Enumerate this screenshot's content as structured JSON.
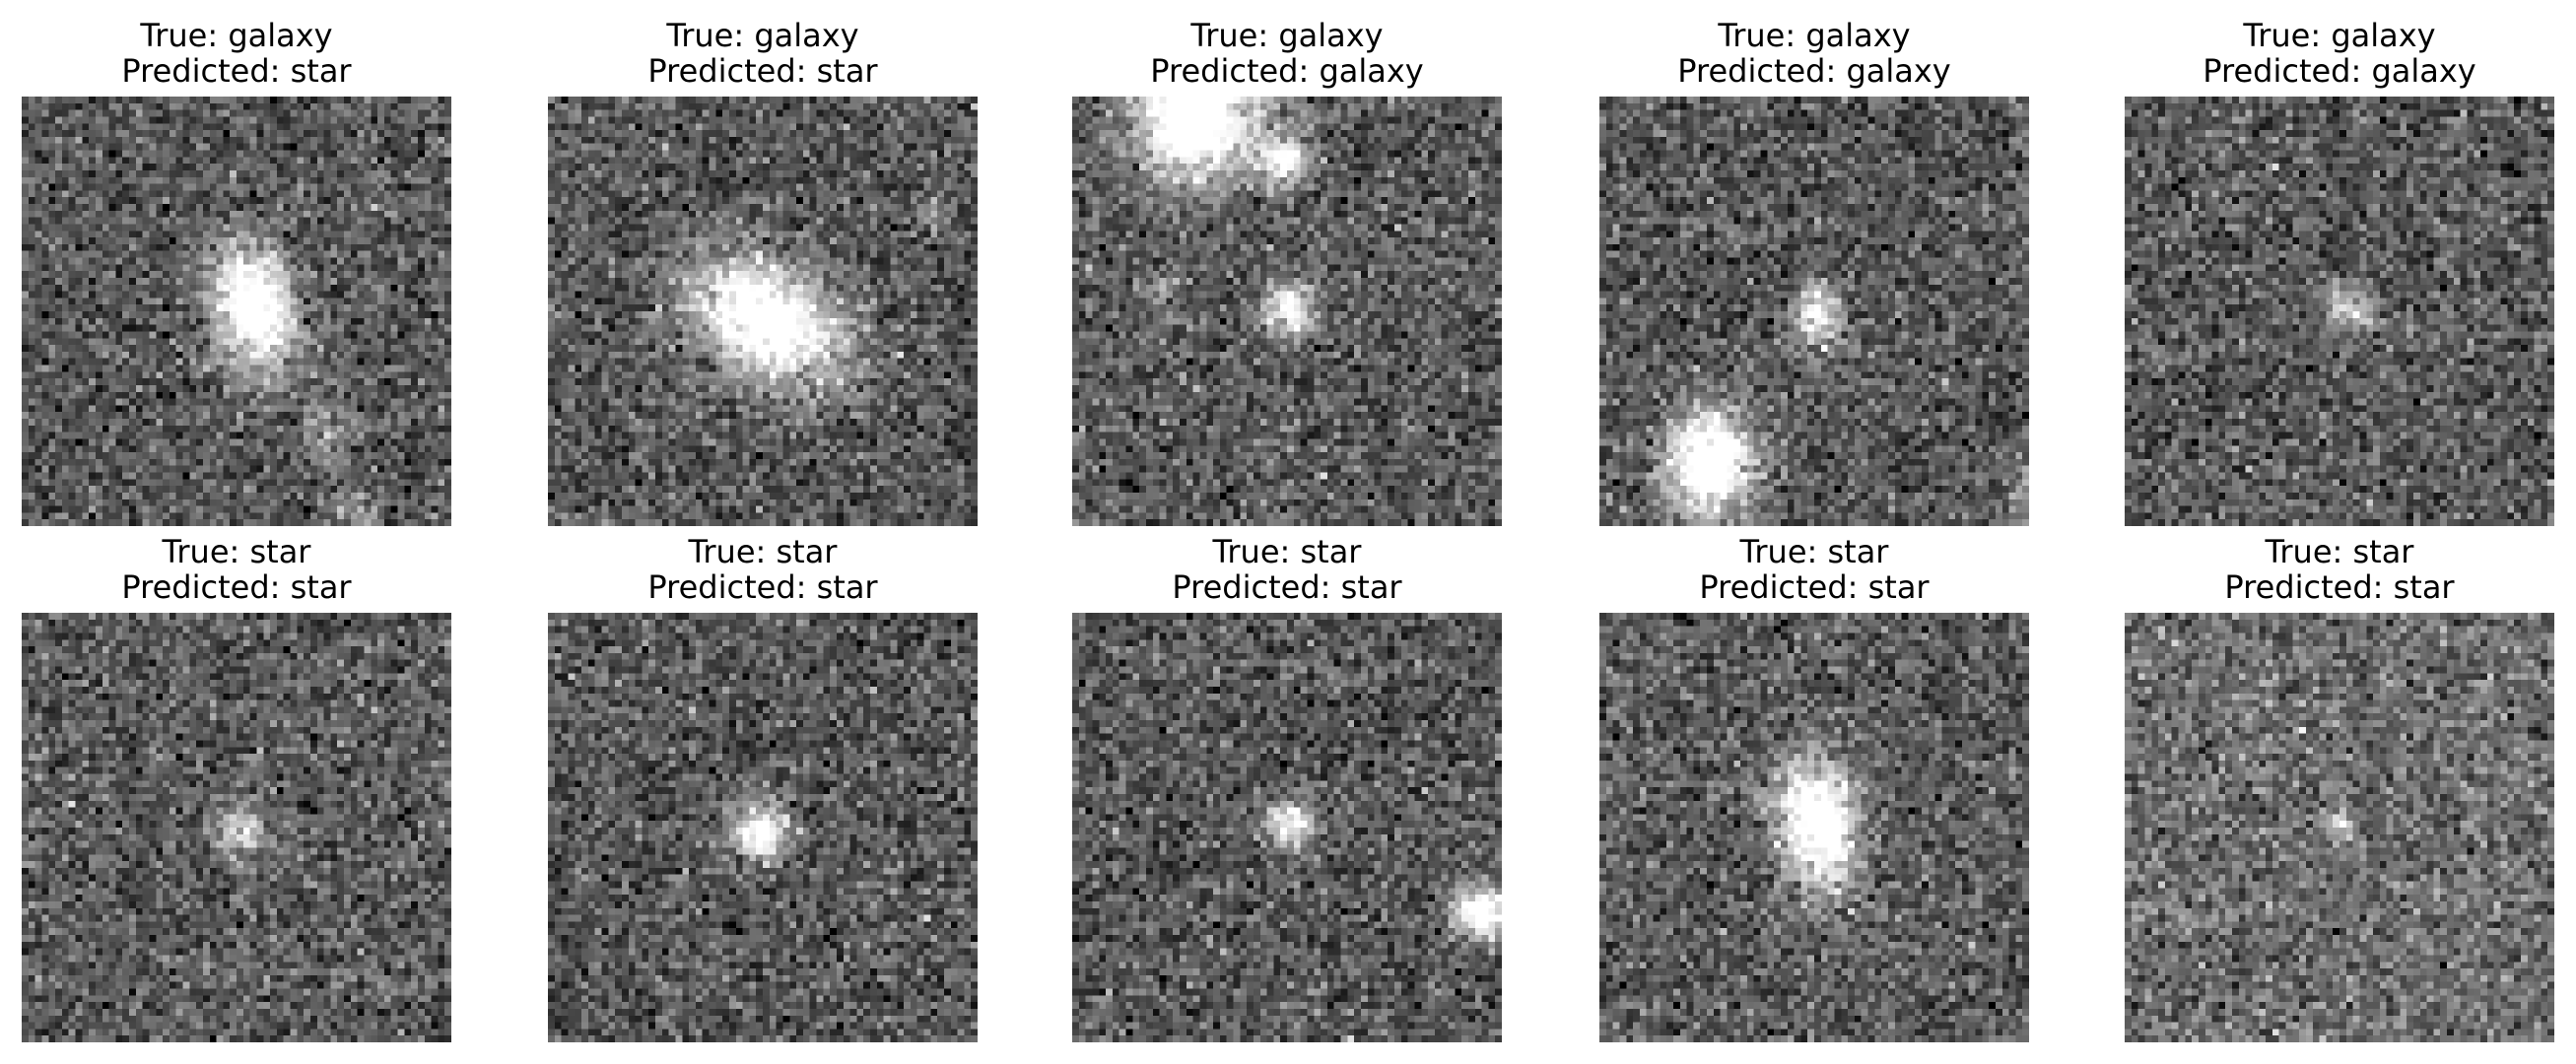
{
  "panels": [
    {
      "true_label": "True: galaxy",
      "predicted_label": "Predicted: star"
    },
    {
      "true_label": "True: galaxy",
      "predicted_label": "Predicted: star"
    },
    {
      "true_label": "True: galaxy",
      "predicted_label": "Predicted: galaxy"
    },
    {
      "true_label": "True: galaxy",
      "predicted_label": "Predicted: galaxy"
    },
    {
      "true_label": "True: galaxy",
      "predicted_label": "Predicted: galaxy"
    },
    {
      "true_label": "True: star",
      "predicted_label": "Predicted: star"
    },
    {
      "true_label": "True: star",
      "predicted_label": "Predicted: star"
    },
    {
      "true_label": "True: star",
      "predicted_label": "Predicted: star"
    },
    {
      "true_label": "True: star",
      "predicted_label": "Predicted: star"
    },
    {
      "true_label": "True: star",
      "predicted_label": "Predicted: star"
    }
  ],
  "colors": {
    "background": "#ffffff",
    "text": "#000000",
    "colormap": "gray"
  }
}
